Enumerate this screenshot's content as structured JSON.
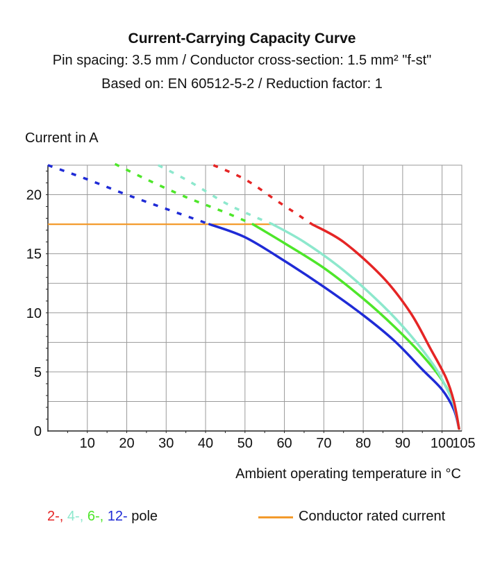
{
  "title": "Current-Carrying Capacity Curve",
  "subtitle_1": "Pin spacing: 3.5 mm / Conductor cross-section: 1.5 mm² \"f-st\"",
  "subtitle_2": "Based on: EN 60512-5-2 / Reduction factor: 1",
  "chart_data": {
    "type": "line",
    "title": "Current-Carrying Capacity Curve",
    "xlabel": "Ambient operating temperature in °C",
    "ylabel": "Current in A",
    "xlim": [
      0,
      105
    ],
    "ylim": [
      0,
      22.5
    ],
    "x_ticks": [
      10,
      20,
      30,
      40,
      50,
      60,
      70,
      80,
      90,
      100,
      105
    ],
    "y_ticks": [
      0,
      5,
      10,
      15,
      20
    ],
    "grid": true,
    "legend_placement": "bottom",
    "rated_current": {
      "name": "Conductor rated current",
      "value": 17.5,
      "x_range": [
        0,
        57
      ],
      "color": "#f39a2c"
    },
    "series": [
      {
        "name": "2-",
        "color": "#e52525",
        "dashed": [
          [
            42,
            22.5
          ],
          [
            50,
            21.3
          ],
          [
            58,
            19.5
          ],
          [
            63,
            18.4
          ],
          [
            67,
            17.5
          ]
        ],
        "solid": [
          [
            67,
            17.5
          ],
          [
            75,
            16.0
          ],
          [
            85,
            13.0
          ],
          [
            92,
            10.0
          ],
          [
            97,
            7.0
          ],
          [
            101,
            4.5
          ],
          [
            103,
            2.5
          ],
          [
            104.3,
            0.2
          ]
        ]
      },
      {
        "name": "4-",
        "color": "#8de8cd",
        "dashed": [
          [
            28,
            22.5
          ],
          [
            36,
            21.1
          ],
          [
            45,
            19.3
          ],
          [
            52,
            18.2
          ],
          [
            57,
            17.5
          ]
        ],
        "solid": [
          [
            57,
            17.5
          ],
          [
            65,
            16.0
          ],
          [
            75,
            13.6
          ],
          [
            85,
            10.6
          ],
          [
            92,
            8.1
          ],
          [
            98,
            5.5
          ],
          [
            101,
            3.7
          ],
          [
            103,
            2.2
          ],
          [
            104.3,
            0.2
          ]
        ]
      },
      {
        "name": "6-",
        "color": "#4ee62a",
        "dashed": [
          [
            17,
            22.6
          ],
          [
            25,
            21.3
          ],
          [
            35,
            19.8
          ],
          [
            45,
            18.5
          ],
          [
            52,
            17.5
          ]
        ],
        "solid": [
          [
            52,
            17.5
          ],
          [
            60,
            15.9
          ],
          [
            70,
            13.8
          ],
          [
            80,
            11.2
          ],
          [
            88,
            8.8
          ],
          [
            95,
            6.4
          ],
          [
            100,
            4.3
          ],
          [
            103,
            2.3
          ],
          [
            104.3,
            0.2
          ]
        ]
      },
      {
        "name": "12-",
        "color": "#1f2bd6",
        "dashed": [
          [
            0,
            22.5
          ],
          [
            10,
            21.3
          ],
          [
            20,
            20.0
          ],
          [
            30,
            18.8
          ],
          [
            41,
            17.5
          ]
        ],
        "solid": [
          [
            41,
            17.5
          ],
          [
            50,
            16.4
          ],
          [
            60,
            14.4
          ],
          [
            70,
            12.2
          ],
          [
            80,
            9.8
          ],
          [
            88,
            7.6
          ],
          [
            95,
            5.2
          ],
          [
            100,
            3.5
          ],
          [
            103,
            1.8
          ],
          [
            104.3,
            0.2
          ]
        ]
      }
    ]
  },
  "legend": {
    "pole_sep": ", ",
    "pole_suffix": " pole",
    "rated_label": "Conductor rated current"
  }
}
